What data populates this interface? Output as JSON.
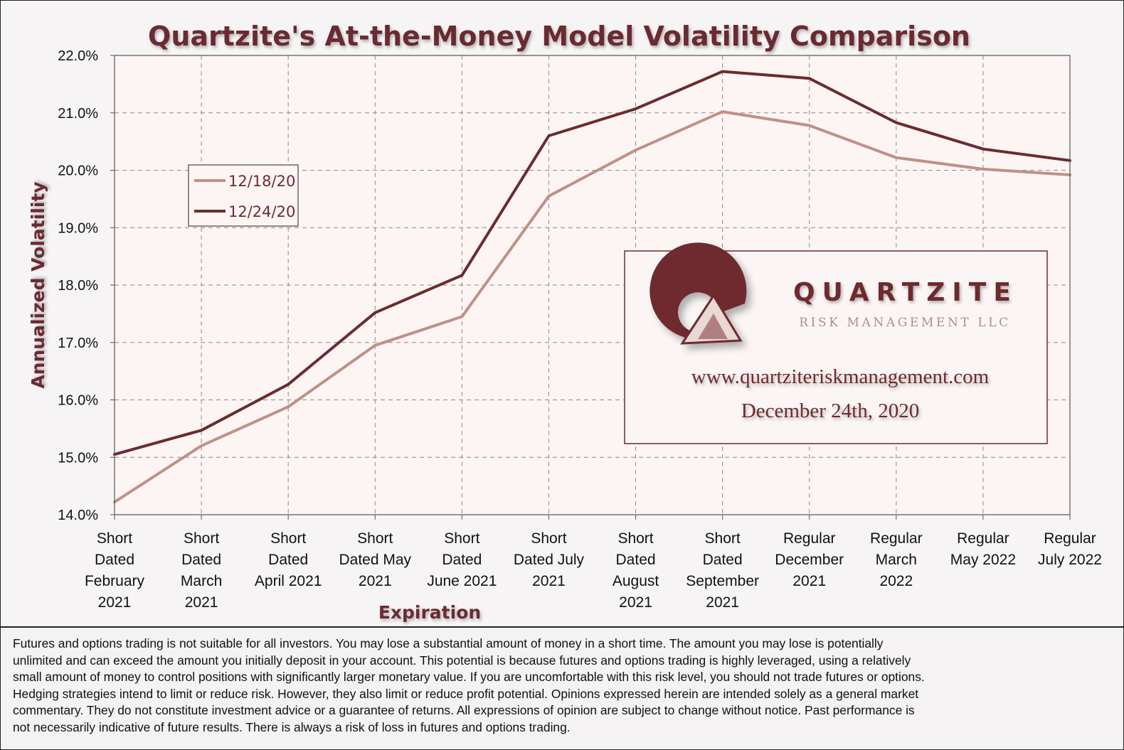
{
  "chart_data": {
    "type": "line",
    "title": "Quartzite's At-the-Money Model Volatility Comparison",
    "xlabel": "Expiration",
    "ylabel": "Annualized Volatility",
    "ylim": [
      14.0,
      22.0
    ],
    "y_ticks": [
      "14.0%",
      "15.0%",
      "16.0%",
      "17.0%",
      "18.0%",
      "19.0%",
      "20.0%",
      "21.0%",
      "22.0%"
    ],
    "categories": [
      [
        "Short",
        "Dated",
        "February",
        "2021"
      ],
      [
        "Short",
        "Dated",
        "March",
        "2021"
      ],
      [
        "Short",
        "Dated",
        "April 2021"
      ],
      [
        "Short",
        "Dated May",
        "2021"
      ],
      [
        "Short",
        "Dated",
        "June 2021"
      ],
      [
        "Short",
        "Dated July",
        "2021"
      ],
      [
        "Short",
        "Dated",
        "August",
        "2021"
      ],
      [
        "Short",
        "Dated",
        "September",
        "2021"
      ],
      [
        "Regular",
        "December",
        "2021"
      ],
      [
        "Regular",
        "March",
        "2022"
      ],
      [
        "Regular",
        "May 2022"
      ],
      [
        "Regular",
        "July 2022"
      ]
    ],
    "grid": true,
    "legend_position": "upper-left",
    "series": [
      {
        "name": "12/18/20",
        "color": "#c09088",
        "values": [
          14.22,
          15.2,
          15.88,
          16.95,
          17.45,
          19.55,
          20.35,
          21.02,
          20.78,
          20.22,
          20.02,
          19.92
        ]
      },
      {
        "name": "12/24/20",
        "color": "#6b2b30",
        "values": [
          15.05,
          15.47,
          16.27,
          17.52,
          18.17,
          20.6,
          21.07,
          21.72,
          21.6,
          20.83,
          20.37,
          20.17
        ]
      }
    ]
  },
  "branding": {
    "company": "QUARTZITE",
    "subtitle": "RISK MANAGEMENT LLC",
    "website": "www.quartziteriskmanagement.com",
    "date": "December 24th, 2020"
  },
  "disclaimer": [
    "Futures and options trading is not suitable for all investors. You may lose a substantial amount of money in a short time. The amount you may lose is potentially",
    "unlimited and can exceed the amount you initially deposit in your account. This potential is because futures and options trading is highly leveraged, using a relatively",
    "small amount of money to control positions with significantly larger monetary value. If you are uncomfortable with this risk level, you should not trade futures or options.",
    "Hedging strategies intend to limit or reduce risk. However, they also limit or reduce profit potential. Opinions expressed herein are intended solely as a general market",
    "commentary. They do not constitute investment advice or a guarantee of returns. All expressions of opinion are subject to change without notice. Past performance is",
    "not necessarily indicative of future results. There is always a risk of loss in futures and options trading."
  ],
  "colors": {
    "title": "#6b2b30",
    "plot_bg": "#fdf5f3",
    "grid": "#8a8a8a",
    "brand": "#6b2b30"
  }
}
